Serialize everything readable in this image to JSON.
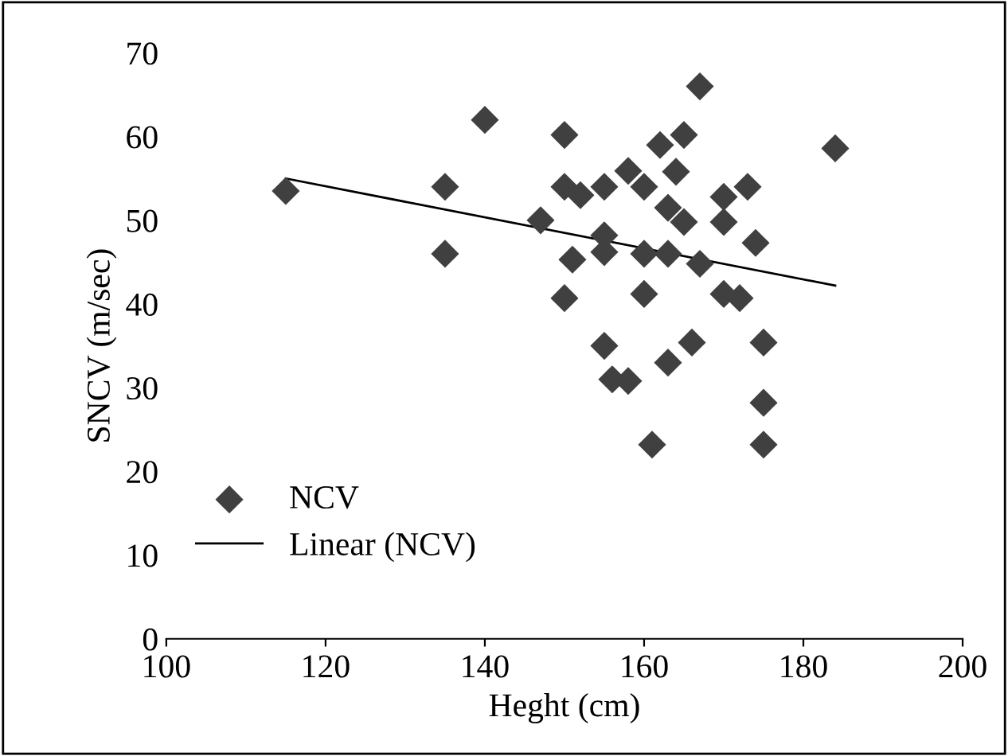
{
  "chart_data": {
    "type": "scatter",
    "xlabel": "Heght (cm)",
    "ylabel": "SNCV (m/sec)",
    "xlim": [
      100,
      200
    ],
    "xticks": [
      100,
      120,
      140,
      160,
      180,
      200
    ],
    "ylim": [
      0,
      70
    ],
    "yticks": [
      0,
      10,
      20,
      30,
      40,
      50,
      60,
      70
    ],
    "grid": false,
    "legend": "bottom left",
    "marker": "diamond",
    "series": [
      {
        "name": "NCV",
        "color": "#404040",
        "x": [
          115,
          135,
          135,
          140,
          147,
          150,
          150,
          150,
          151,
          152,
          155,
          155,
          155,
          155,
          156,
          158,
          158,
          160,
          160,
          160,
          161,
          162,
          163,
          163,
          163,
          164,
          165,
          165,
          166,
          167,
          167,
          170,
          170,
          170,
          172,
          173,
          174,
          175,
          175,
          175,
          184
        ],
        "values": [
          53.5,
          54,
          46,
          62,
          50,
          60.2,
          54,
          40.7,
          45.3,
          53,
          54,
          48.2,
          46.2,
          35,
          31,
          55.9,
          30.8,
          54,
          46,
          41.2,
          23.2,
          59,
          51.5,
          46,
          33,
          55.8,
          60.2,
          49.8,
          35.4,
          66,
          44.8,
          52.8,
          49.8,
          41.2,
          40.7,
          54,
          47.3,
          35.4,
          28.2,
          23.2,
          58.6
        ]
      },
      {
        "name": "Linear (NCV)",
        "type": "line",
        "color": "#000000",
        "marker": "none",
        "line_style": "solid",
        "x": [
          115,
          184
        ],
        "values": [
          55,
          42.2
        ]
      }
    ]
  }
}
